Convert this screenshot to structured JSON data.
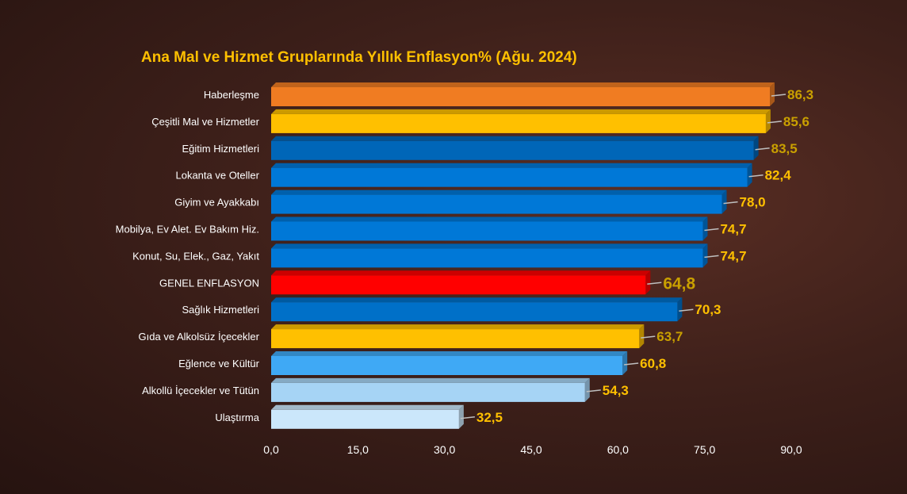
{
  "chart_data": {
    "type": "bar",
    "orientation": "horizontal",
    "title": "Ana Mal ve Hizmet Gruplarında Yıllık Enflasyon% (Ağu. 2024)",
    "xlabel": "",
    "ylabel": "",
    "xlim": [
      0,
      90
    ],
    "x_ticks": [
      "0,0",
      "15,0",
      "30,0",
      "45,0",
      "60,0",
      "75,0",
      "90,0"
    ],
    "grid": false,
    "categories": [
      "Haberleşme",
      "Çeşitli Mal ve Hizmetler",
      "Eğitim Hizmetleri",
      "Lokanta ve Oteller",
      "Giyim ve Ayakkabı",
      "Mobilya, Ev Alet. Ev Bakım Hiz.",
      "Konut, Su, Elek., Gaz, Yakıt",
      "GENEL ENFLASYON",
      "Sağlık Hizmetleri",
      "Gıda ve Alkolsüz İçecekler",
      "Eğlence ve Kültür",
      "Alkollü İçecekler ve Tütün",
      "Ulaştırma"
    ],
    "values": [
      86.3,
      85.6,
      83.5,
      82.4,
      78.0,
      74.7,
      74.7,
      64.8,
      70.3,
      63.7,
      60.8,
      54.3,
      32.5
    ],
    "value_labels": [
      "86,3",
      "85,6",
      "83,5",
      "82,4",
      "78,0",
      "74,7",
      "74,7",
      "64,8",
      "70,3",
      "63,7",
      "60,8",
      "54,3",
      "32,5"
    ],
    "colors": [
      "#f07c22",
      "#ffc000",
      "#0066b8",
      "#0078d7",
      "#0078d7",
      "#0078d7",
      "#0078d7",
      "#ff0000",
      "#0070c8",
      "#ffc000",
      "#3fa9f5",
      "#a6d4f5",
      "#cbe7fb"
    ],
    "label_colors": [
      "#c9a000",
      "#c9a000",
      "#c9a000",
      "#ffc000",
      "#ffc000",
      "#ffc000",
      "#ffc000",
      "#c9a000",
      "#ffc000",
      "#c9a000",
      "#ffc000",
      "#ffc000",
      "#ffc000"
    ]
  }
}
